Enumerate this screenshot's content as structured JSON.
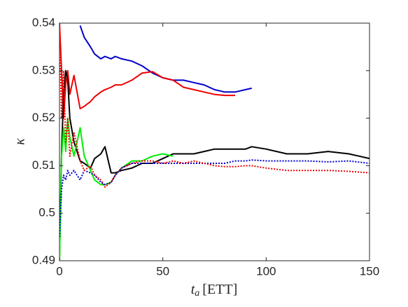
{
  "chart_data": {
    "type": "line",
    "ylabel": "κ",
    "xlabel": {
      "symbol": "t",
      "subscript": "a",
      "unit": "[ETT]"
    },
    "x": [
      0,
      1,
      2,
      3,
      4,
      5,
      7,
      10,
      12,
      15,
      17,
      20,
      22,
      25,
      27,
      30,
      35,
      40,
      45,
      50,
      55,
      60,
      65,
      70,
      75,
      80,
      85,
      90,
      93,
      100,
      110,
      120,
      130,
      140,
      150
    ],
    "xlim": [
      0,
      150
    ],
    "xticks": [
      0,
      50,
      100,
      150
    ],
    "ylim": [
      0.49,
      0.54
    ],
    "yticks": [
      0.49,
      0.5,
      0.51,
      0.52,
      0.53,
      0.54
    ],
    "series": [
      {
        "color": "#0000cc",
        "style": "solid",
        "values": [
          null,
          null,
          null,
          null,
          null,
          null,
          null,
          0.5395,
          0.537,
          0.535,
          0.5335,
          0.5325,
          0.533,
          0.5325,
          0.533,
          0.5325,
          0.532,
          0.531,
          0.5295,
          0.5285,
          0.528,
          0.528,
          0.5275,
          0.527,
          0.526,
          0.5255,
          0.5255,
          0.526,
          0.5263,
          null,
          null,
          null,
          null,
          null,
          null
        ]
      },
      {
        "color": "#ee0000",
        "style": "solid",
        "values": [
          0.54,
          0.53,
          0.52,
          0.527,
          0.53,
          0.525,
          0.529,
          0.522,
          0.5225,
          0.5235,
          0.5245,
          0.5255,
          0.526,
          0.5265,
          0.527,
          0.527,
          0.528,
          0.5295,
          0.5298,
          0.5285,
          0.528,
          0.5265,
          0.526,
          0.5255,
          0.525,
          0.5248,
          0.5248,
          null,
          null,
          null,
          null,
          null,
          null,
          null,
          null
        ]
      },
      {
        "color": "#000000",
        "style": "solid",
        "values": [
          0.49,
          0.513,
          0.525,
          0.53,
          0.528,
          0.52,
          0.515,
          0.511,
          0.5105,
          0.5095,
          0.5115,
          0.5125,
          0.514,
          0.5085,
          0.5085,
          0.509,
          0.5095,
          0.5105,
          0.5105,
          0.5115,
          0.5125,
          0.5125,
          0.5125,
          0.513,
          0.5135,
          0.5135,
          0.5135,
          0.5135,
          0.514,
          0.5135,
          0.5125,
          0.5125,
          0.513,
          0.5125,
          0.5115
        ]
      },
      {
        "color": "#00ee00",
        "style": "solid",
        "values": [
          0.49,
          0.512,
          0.518,
          0.513,
          0.52,
          0.516,
          0.512,
          0.518,
          0.512,
          0.509,
          0.507,
          0.506,
          0.506,
          0.5065,
          0.508,
          0.5095,
          0.511,
          0.511,
          0.512,
          0.5125,
          0.512,
          null,
          null,
          null,
          null,
          null,
          null,
          null,
          null,
          null,
          null,
          null,
          null,
          null,
          null
        ]
      },
      {
        "color": "#0000cc",
        "style": "dotted",
        "values": [
          0.495,
          0.505,
          0.508,
          0.507,
          0.509,
          0.508,
          0.509,
          0.507,
          0.509,
          0.5085,
          0.508,
          0.5065,
          0.506,
          0.5065,
          0.508,
          0.5095,
          0.5105,
          0.5105,
          0.5105,
          0.5105,
          0.5105,
          0.5105,
          0.5105,
          0.5105,
          0.5105,
          0.5105,
          0.511,
          0.511,
          0.5112,
          0.511,
          0.511,
          0.511,
          0.5108,
          0.511,
          0.5105
        ]
      },
      {
        "color": "#ee0000",
        "style": "dotted",
        "values": [
          0.54,
          0.52,
          0.53,
          0.515,
          0.52,
          0.512,
          0.517,
          0.511,
          0.509,
          0.51,
          0.508,
          0.507,
          0.5055,
          0.5065,
          0.508,
          0.5095,
          0.5105,
          0.511,
          0.511,
          0.5105,
          0.511,
          0.5105,
          0.511,
          0.5105,
          0.51,
          0.5098,
          0.5098,
          0.51,
          0.51,
          0.5095,
          0.509,
          0.509,
          0.509,
          0.5088,
          0.5085
        ]
      }
    ]
  }
}
